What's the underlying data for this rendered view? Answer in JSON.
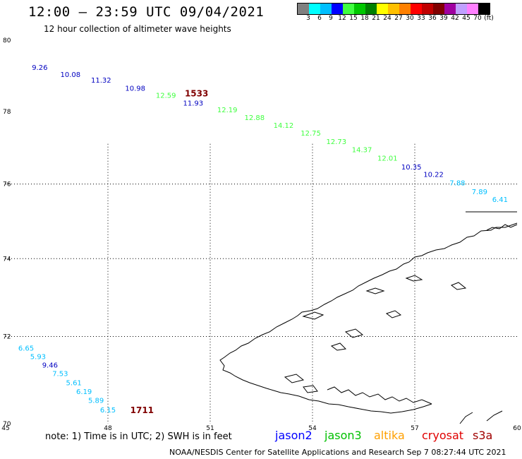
{
  "header": {
    "title": "12:00 – 23:59 UTC 09/04/2021",
    "subtitle": "12 hour collection of altimeter wave heights"
  },
  "colorbar": {
    "colors": [
      "#808080",
      "#00ffff",
      "#00bfff",
      "#0000ff",
      "#40ff40",
      "#00c800",
      "#008000",
      "#ffff00",
      "#ffc000",
      "#ff8000",
      "#ff0000",
      "#c00000",
      "#800000",
      "#a000a0",
      "#c0a0ff",
      "#ff80ff",
      "#000000"
    ],
    "labels": [
      "3",
      "6",
      "9",
      "12",
      "15",
      "18",
      "21",
      "24",
      "27",
      "30",
      "33",
      "36",
      "39",
      "42",
      "45",
      "70",
      "(ft)"
    ]
  },
  "axes": {
    "x_ticks": [
      "45",
      "48",
      "51",
      "54",
      "57",
      "60"
    ],
    "y_ticks": [
      "80",
      "78",
      "76",
      "74",
      "72",
      "70"
    ],
    "x_range": [
      45,
      60
    ],
    "y_range": [
      70,
      80
    ]
  },
  "footer": {
    "note": "note:  1) Time is in UTC;  2) SWH is in feet",
    "missions": [
      {
        "name": "jason2",
        "color": "#0000ff"
      },
      {
        "name": "jason3",
        "color": "#00c000"
      },
      {
        "name": "altika",
        "color": "#ffa000"
      },
      {
        "name": "cryosat",
        "color": "#e00000"
      },
      {
        "name": "s3a",
        "color": "#a00000"
      }
    ],
    "credit": "NOAA/NESDIS Center for Satellite Applications and Research    Sep  7 08:27:44 UTC 2021"
  },
  "observations": [
    {
      "lon": 46.0,
      "lat": 79.16,
      "label": "9.26",
      "color": "#0000c0"
    },
    {
      "lon": 46.9,
      "lat": 78.96,
      "label": "10.08",
      "color": "#0000c0"
    },
    {
      "lon": 47.8,
      "lat": 78.8,
      "label": "11.32",
      "color": "#0000c0"
    },
    {
      "lon": 48.8,
      "lat": 78.58,
      "label": "10.98",
      "color": "#0000c0"
    },
    {
      "lon": 49.7,
      "lat": 78.38,
      "label": "12.59",
      "color": "#40ff40"
    },
    {
      "lon": 50.5,
      "lat": 78.16,
      "label": "11.93",
      "color": "#0000c0"
    },
    {
      "lon": 51.5,
      "lat": 77.98,
      "label": "12.19",
      "color": "#40ff40"
    },
    {
      "lon": 52.3,
      "lat": 77.76,
      "label": "12.88",
      "color": "#40ff40"
    },
    {
      "lon": 53.15,
      "lat": 77.54,
      "label": "14.12",
      "color": "#40ff40"
    },
    {
      "lon": 53.95,
      "lat": 77.33,
      "label": "12.75",
      "color": "#40ff40"
    },
    {
      "lon": 54.7,
      "lat": 77.1,
      "label": "12.73",
      "color": "#40ff40"
    },
    {
      "lon": 55.45,
      "lat": 76.87,
      "label": "14.37",
      "color": "#40ff40"
    },
    {
      "lon": 56.2,
      "lat": 76.64,
      "label": "12.01",
      "color": "#40ff40"
    },
    {
      "lon": 56.9,
      "lat": 76.4,
      "label": "10.35",
      "color": "#0000c0"
    },
    {
      "lon": 57.55,
      "lat": 76.19,
      "label": "10.22",
      "color": "#0000c0"
    },
    {
      "lon": 58.25,
      "lat": 75.96,
      "label": "7.88",
      "color": "#00bfff"
    },
    {
      "lon": 58.9,
      "lat": 75.72,
      "label": "7.89",
      "color": "#00bfff"
    },
    {
      "lon": 59.5,
      "lat": 75.51,
      "label": "6.41",
      "color": "#00bfff"
    },
    {
      "lon": 45.6,
      "lat": 71.65,
      "label": "6.65",
      "color": "#00bfff"
    },
    {
      "lon": 45.95,
      "lat": 71.44,
      "label": "5.93",
      "color": "#00bfff"
    },
    {
      "lon": 46.3,
      "lat": 71.24,
      "label": "9.46",
      "color": "#0000c0"
    },
    {
      "lon": 46.6,
      "lat": 71.04,
      "label": "7.53",
      "color": "#00bfff"
    },
    {
      "lon": 47.0,
      "lat": 70.82,
      "label": "5.61",
      "color": "#00bfff"
    },
    {
      "lon": 47.3,
      "lat": 70.62,
      "label": "6.19",
      "color": "#00bfff"
    },
    {
      "lon": 47.65,
      "lat": 70.42,
      "label": "5.89",
      "color": "#00bfff"
    },
    {
      "lon": 48.0,
      "lat": 70.22,
      "label": "6.15",
      "color": "#00bfff"
    }
  ],
  "time_labels": [
    {
      "lon": 50.6,
      "lat": 78.42,
      "label": "1533",
      "color": "#800000"
    },
    {
      "lon": 49.0,
      "lat": 70.2,
      "label": "1711",
      "color": "#800000"
    }
  ]
}
